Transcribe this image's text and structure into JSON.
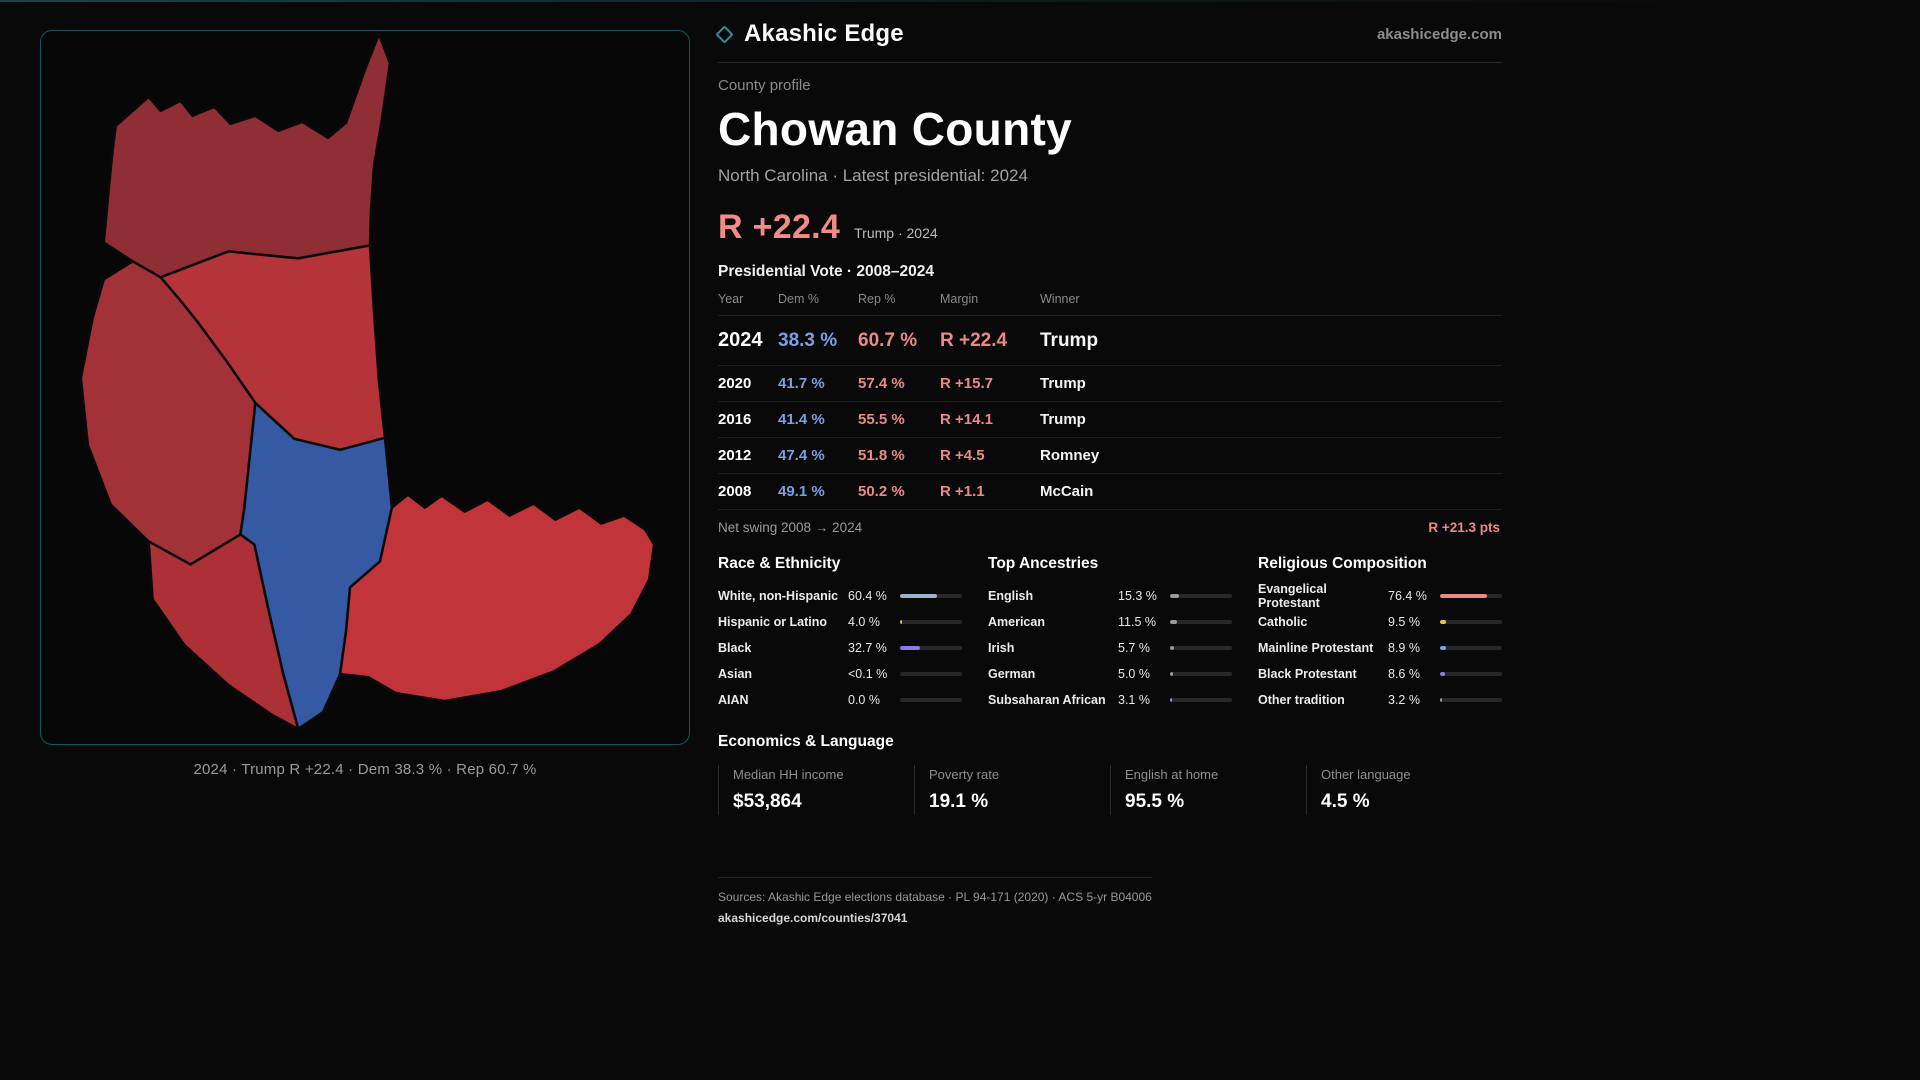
{
  "brand": {
    "name": "Akashic Edge",
    "site": "akashicedge.com"
  },
  "profile": {
    "eyebrow": "County profile",
    "title": "Chowan County",
    "subtitle": "North Carolina · Latest presidential: 2024",
    "headline_margin": "R +22.4",
    "headline_note": "Trump · 2024"
  },
  "vote_table": {
    "title": "Presidential Vote · 2008–2024",
    "columns": {
      "year": "Year",
      "dem": "Dem %",
      "rep": "Rep %",
      "margin": "Margin",
      "winner": "Winner"
    },
    "rows": [
      {
        "year": "2024",
        "dem": "38.3 %",
        "rep": "60.7 %",
        "margin": "R +22.4",
        "winner": "Trump"
      },
      {
        "year": "2020",
        "dem": "41.7 %",
        "rep": "57.4 %",
        "margin": "R +15.7",
        "winner": "Trump"
      },
      {
        "year": "2016",
        "dem": "41.4 %",
        "rep": "55.5 %",
        "margin": "R +14.1",
        "winner": "Trump"
      },
      {
        "year": "2012",
        "dem": "47.4 %",
        "rep": "51.8 %",
        "margin": "R +4.5",
        "winner": "Romney"
      },
      {
        "year": "2008",
        "dem": "49.1 %",
        "rep": "50.2 %",
        "margin": "R +1.1",
        "winner": "McCain"
      }
    ]
  },
  "net_swing": {
    "label": "Net swing 2008 → 2024",
    "value": "R +21.3 pts"
  },
  "demographics": {
    "groups": [
      {
        "title": "Race & Ethnicity",
        "items": [
          {
            "label": "White, non-Hispanic",
            "value": "60.4 %",
            "pct": 60.4,
            "color": "#9db3cc"
          },
          {
            "label": "Hispanic or Latino",
            "value": "4.0 %",
            "pct": 4.0,
            "color": "#e3c44e"
          },
          {
            "label": "Black",
            "value": "32.7 %",
            "pct": 32.7,
            "color": "#8b7ae8"
          },
          {
            "label": "Asian",
            "value": "<0.1 %",
            "pct": 0.1,
            "color": "#9a9aa2"
          },
          {
            "label": "AIAN",
            "value": "0.0 %",
            "pct": 0.0,
            "color": "#9a9aa2"
          }
        ]
      },
      {
        "title": "Top Ancestries",
        "items": [
          {
            "label": "English",
            "value": "15.3 %",
            "pct": 15.3,
            "color": "#9a9aa2"
          },
          {
            "label": "American",
            "value": "11.5 %",
            "pct": 11.5,
            "color": "#9a9aa2"
          },
          {
            "label": "Irish",
            "value": "5.7 %",
            "pct": 5.7,
            "color": "#9a9aa2"
          },
          {
            "label": "German",
            "value": "5.0 %",
            "pct": 5.0,
            "color": "#9a9aa2"
          },
          {
            "label": "Subsaharan African",
            "value": "3.1 %",
            "pct": 3.1,
            "color": "#7da2e8"
          }
        ]
      },
      {
        "title": "Religious Composition",
        "items": [
          {
            "label": "Evangelical Protestant",
            "value": "76.4 %",
            "pct": 76.4,
            "color": "#e88a8a"
          },
          {
            "label": "Catholic",
            "value": "9.5 %",
            "pct": 9.5,
            "color": "#e3c44e"
          },
          {
            "label": "Mainline Protestant",
            "value": "8.9 %",
            "pct": 8.9,
            "color": "#7da2e8"
          },
          {
            "label": "Black Protestant",
            "value": "8.6 %",
            "pct": 8.6,
            "color": "#8b7ae8"
          },
          {
            "label": "Other tradition",
            "value": "3.2 %",
            "pct": 3.2,
            "color": "#9a9aa2"
          }
        ]
      }
    ]
  },
  "economics": {
    "title": "Economics & Language",
    "stats": [
      {
        "label": "Median HH income",
        "value": "$53,864"
      },
      {
        "label": "Poverty rate",
        "value": "19.1 %"
      },
      {
        "label": "English at home",
        "value": "95.5 %"
      },
      {
        "label": "Other language",
        "value": "4.5 %"
      }
    ]
  },
  "map": {
    "caption": "2024 · Trump R +22.4 · Dem 38.3 % · Rep 60.7 %",
    "colors": {
      "precinct_north": "#8f2e34",
      "precinct_central": "#b43439",
      "precinct_west": "#a23138",
      "precinct_blue": "#3659a4",
      "precinct_east": "#c0343a",
      "precinct_south": "#ad3037"
    }
  },
  "footer": {
    "sources": "Sources: Akashic Edge elections database · PL 94-171 (2020) · ACS 5-yr B04006",
    "link": "akashicedge.com/counties/37041"
  },
  "chart_data": [
    {
      "type": "table",
      "title": "Presidential Vote · 2008–2024",
      "columns": [
        "Year",
        "Dem %",
        "Rep %",
        "Margin",
        "Winner"
      ],
      "rows": [
        [
          "2024",
          38.3,
          60.7,
          "R +22.4",
          "Trump"
        ],
        [
          "2020",
          41.7,
          57.4,
          "R +15.7",
          "Trump"
        ],
        [
          "2016",
          41.4,
          55.5,
          "R +14.1",
          "Trump"
        ],
        [
          "2012",
          47.4,
          51.8,
          "R +4.5",
          "Romney"
        ],
        [
          "2008",
          49.1,
          50.2,
          "R +1.1",
          "McCain"
        ]
      ]
    },
    {
      "type": "bar",
      "title": "Race & Ethnicity",
      "categories": [
        "White, non-Hispanic",
        "Hispanic or Latino",
        "Black",
        "Asian",
        "AIAN"
      ],
      "values": [
        60.4,
        4.0,
        32.7,
        0.1,
        0.0
      ],
      "xlim": [
        0,
        100
      ]
    },
    {
      "type": "bar",
      "title": "Top Ancestries",
      "categories": [
        "English",
        "American",
        "Irish",
        "German",
        "Subsaharan African"
      ],
      "values": [
        15.3,
        11.5,
        5.7,
        5.0,
        3.1
      ],
      "xlim": [
        0,
        100
      ]
    },
    {
      "type": "bar",
      "title": "Religious Composition",
      "categories": [
        "Evangelical Protestant",
        "Catholic",
        "Mainline Protestant",
        "Black Protestant",
        "Other tradition"
      ],
      "values": [
        76.4,
        9.5,
        8.9,
        8.6,
        3.2
      ],
      "xlim": [
        0,
        100
      ]
    },
    {
      "type": "bar",
      "title": "Economics & Language",
      "categories": [
        "Median HH income ($)",
        "Poverty rate %",
        "English at home %",
        "Other language %"
      ],
      "values": [
        53864,
        19.1,
        95.5,
        4.5
      ]
    }
  ]
}
